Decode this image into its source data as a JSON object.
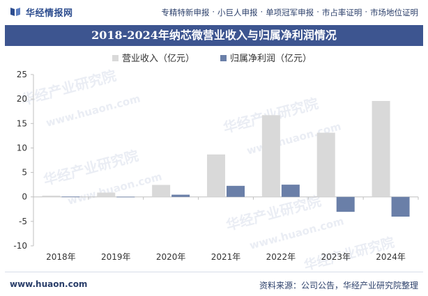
{
  "header": {
    "logo_text": "华经情报网",
    "links": [
      "专精特新申报",
      "小巨人申报",
      "单项冠军申报",
      "市占率证明",
      "市场地位证明"
    ],
    "separator": "·"
  },
  "title": "2018-2024年纳芯微营业收入与归属净利润情况",
  "footer": {
    "url": "www.huaon.com",
    "source": "资料来源：公司公告，华经产业研究院整理"
  },
  "watermark": {
    "cn": "华经产业研究院",
    "en": "www.huaon.com"
  },
  "colors": {
    "header_blue": "#3d5590",
    "revenue": "#d9d9d9",
    "net_profit": "#6a7fa8"
  },
  "chart_data": {
    "type": "bar",
    "categories": [
      "2018年",
      "2019年",
      "2020年",
      "2021年",
      "2022年",
      "2023年",
      "2024年"
    ],
    "series": [
      {
        "name": "营业收入（亿元）",
        "values": [
          0.26,
          0.88,
          2.45,
          8.67,
          16.7,
          13.11,
          19.6
        ]
      },
      {
        "name": "归属净利润（亿元）",
        "values": [
          0.06,
          0.03,
          0.45,
          2.26,
          2.5,
          -3.05,
          -4.03
        ]
      }
    ],
    "ylim": [
      -10,
      25
    ],
    "yticks": [
      -10,
      -5,
      0,
      5,
      10,
      15,
      20,
      25
    ],
    "grid": false,
    "legend": "top"
  }
}
